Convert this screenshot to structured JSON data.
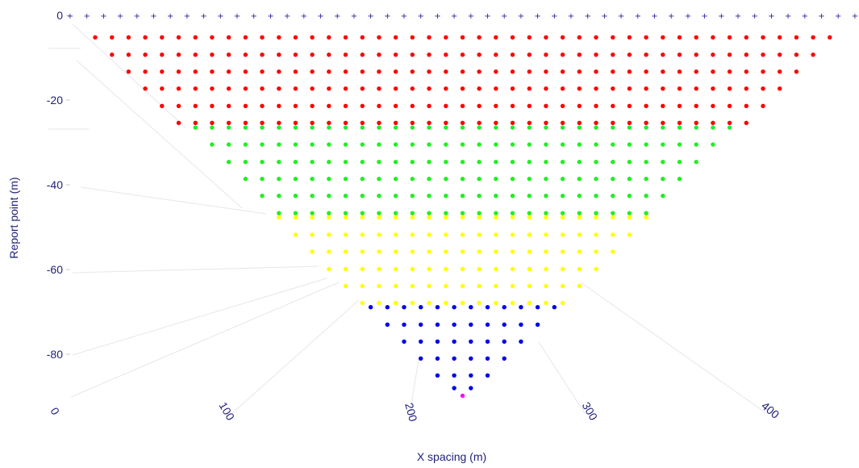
{
  "chart_data": {
    "type": "scatter",
    "xlabel": "X spacing (m)",
    "ylabel": "Report point (m)",
    "x_range": [
      0,
      475
    ],
    "y_range": [
      -90,
      0
    ],
    "y_ticks": [
      {
        "value": 0,
        "label": "0"
      },
      {
        "value": -20,
        "label": "-20"
      },
      {
        "value": -40,
        "label": "-40"
      },
      {
        "value": -60,
        "label": "-60"
      },
      {
        "value": -80,
        "label": "-80"
      }
    ],
    "x_ticks": [
      {
        "value": 0,
        "label": "0"
      },
      {
        "value": 100,
        "label": "100"
      },
      {
        "value": 200,
        "label": "200"
      },
      {
        "value": 300,
        "label": "300"
      },
      {
        "value": 400,
        "label": "400"
      }
    ],
    "electrodes": {
      "marker": "+",
      "color": "#1f1f9a",
      "y": 0,
      "x_start": 0,
      "x_step": 10,
      "count": 48
    },
    "pseudosection": {
      "x_center": 235,
      "spacing": 10,
      "color_bands": [
        {
          "color": "#ff0000",
          "levels": [
            {
              "depth": -5.2,
              "points": 45
            },
            {
              "depth": -9.3,
              "points": 43
            },
            {
              "depth": -13.3,
              "points": 41
            },
            {
              "depth": -17.3,
              "points": 39
            },
            {
              "depth": -21.4,
              "points": 37
            },
            {
              "depth": -25.4,
              "points": 35
            }
          ]
        },
        {
          "color": "#22ee22",
          "levels": [
            {
              "depth": -26.5,
              "points": 33
            },
            {
              "depth": -30.5,
              "points": 31
            },
            {
              "depth": -34.6,
              "points": 29
            },
            {
              "depth": -38.6,
              "points": 27
            },
            {
              "depth": -42.6,
              "points": 25
            },
            {
              "depth": -46.7,
              "points": 23
            }
          ]
        },
        {
          "color": "#ffff00",
          "levels": [
            {
              "depth": -47.7,
              "points": 23
            },
            {
              "depth": -51.8,
              "points": 21
            },
            {
              "depth": -55.8,
              "points": 19
            },
            {
              "depth": -59.9,
              "points": 17
            },
            {
              "depth": -63.9,
              "points": 15
            },
            {
              "depth": -67.9,
              "points": 13
            }
          ]
        },
        {
          "color": "#0000ee",
          "levels": [
            {
              "depth": -68.9,
              "points": 12
            },
            {
              "depth": -73.0,
              "points": 10
            },
            {
              "depth": -77.0,
              "points": 8
            },
            {
              "depth": -81.0,
              "points": 6
            },
            {
              "depth": -85.0,
              "points": 4
            },
            {
              "depth": -88.0,
              "points": 2
            }
          ]
        },
        {
          "color": "#ff00ff",
          "levels": [
            {
              "depth": -89.8,
              "points": 1
            }
          ]
        }
      ]
    }
  }
}
